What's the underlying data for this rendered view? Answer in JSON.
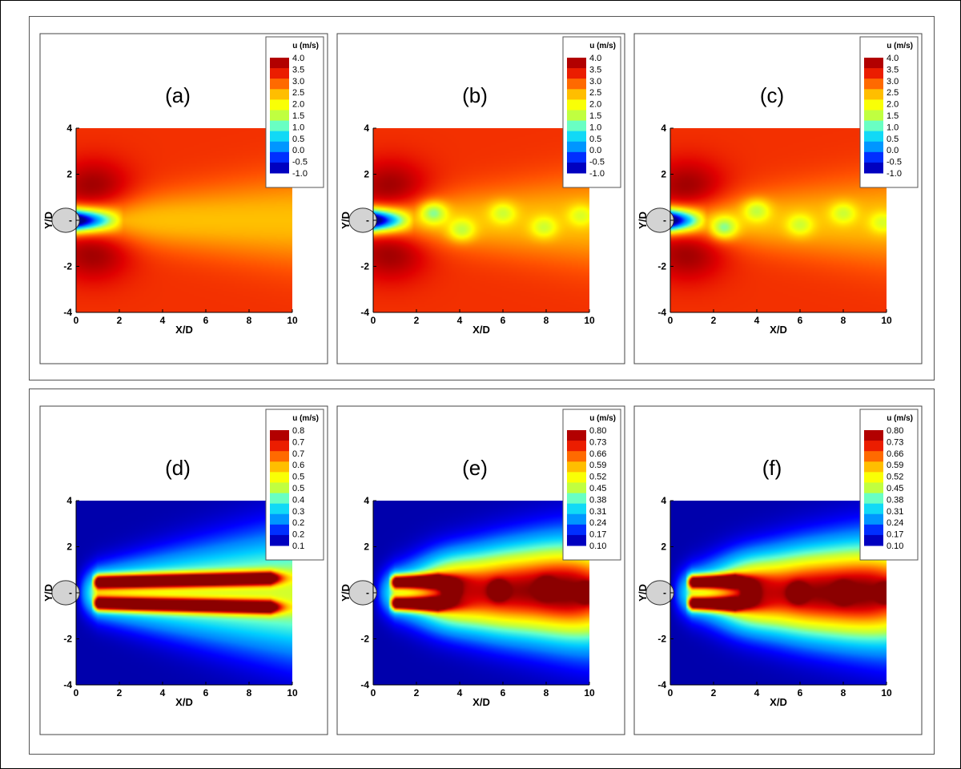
{
  "figure": {
    "colormap": [
      "#00008b",
      "#0000ff",
      "#0080ff",
      "#00d0ff",
      "#60ffd0",
      "#c0ff40",
      "#ffff00",
      "#ffb000",
      "#ff5000",
      "#e00000",
      "#8b0000"
    ],
    "obstacle_color": "#d3d3d3"
  },
  "chart_data": [
    {
      "type": "heatmap",
      "panel": "(a)",
      "flow": "steady",
      "xlabel": "X/D",
      "ylabel": "Y/D",
      "xlim": [
        0,
        10
      ],
      "ylim": [
        -4,
        4
      ],
      "xticks": [
        "0",
        "2",
        "4",
        "6",
        "8",
        "10"
      ],
      "yticks": [
        "4",
        "2",
        "-",
        "-2",
        "-4"
      ],
      "legend_title": "u (m/s)",
      "legend_labels": [
        "4.0",
        "3.5",
        "3.0",
        "2.5",
        "2.0",
        "1.5",
        "1.0",
        "0.5",
        "0.0",
        "-0.5",
        "-1.0"
      ],
      "range": [
        -1.0,
        4.0
      ],
      "field": "velocity",
      "freestream": 3.2,
      "core": -0.8,
      "recirc_len": 2.2,
      "wake_min": 2.4,
      "vortices": []
    },
    {
      "type": "heatmap",
      "panel": "(b)",
      "flow": "shedding",
      "xlabel": "X/D",
      "ylabel": "Y/D",
      "xlim": [
        0,
        10
      ],
      "ylim": [
        -4,
        4
      ],
      "xticks": [
        "0",
        "2",
        "4",
        "6",
        "8",
        "10"
      ],
      "yticks": [
        "4",
        "2",
        "-",
        "-2",
        "-4"
      ],
      "legend_title": "u (m/s)",
      "legend_labels": [
        "4.0",
        "3.5",
        "3.0",
        "2.5",
        "2.0",
        "1.5",
        "1.0",
        "0.5",
        "0.0",
        "-0.5",
        "-1.0"
      ],
      "range": [
        -1.0,
        4.0
      ],
      "field": "velocity",
      "freestream": 3.2,
      "core": -0.8,
      "recirc_len": 1.9,
      "wake_min": 2.4,
      "vortices": [
        [
          2.8,
          0.3,
          1.2
        ],
        [
          4.1,
          -0.4,
          1.5
        ],
        [
          6.0,
          0.3,
          1.6
        ],
        [
          7.9,
          -0.3,
          1.6
        ],
        [
          9.6,
          0.2,
          1.7
        ]
      ]
    },
    {
      "type": "heatmap",
      "panel": "(c)",
      "flow": "shedding",
      "xlabel": "X/D",
      "ylabel": "Y/D",
      "xlim": [
        0,
        10
      ],
      "ylim": [
        -4,
        4
      ],
      "xticks": [
        "0",
        "2",
        "4",
        "6",
        "8",
        "10"
      ],
      "yticks": [
        "4",
        "2",
        "-",
        "-2",
        "-4"
      ],
      "legend_title": "u (m/s)",
      "legend_labels": [
        "4.0",
        "3.5",
        "3.0",
        "2.5",
        "2.0",
        "1.5",
        "1.0",
        "0.5",
        "0.0",
        "-0.5",
        "-1.0"
      ],
      "range": [
        -1.0,
        4.0
      ],
      "field": "velocity",
      "freestream": 3.2,
      "core": -0.8,
      "recirc_len": 1.7,
      "wake_min": 2.4,
      "vortices": [
        [
          2.5,
          -0.3,
          1.2
        ],
        [
          4.0,
          0.4,
          1.5
        ],
        [
          6.0,
          -0.2,
          1.6
        ],
        [
          8.0,
          0.3,
          1.6
        ],
        [
          9.8,
          -0.1,
          1.7
        ]
      ]
    },
    {
      "type": "heatmap",
      "panel": "(d)",
      "flow": "steady",
      "xlabel": "X/D",
      "ylabel": "Y/D",
      "xlim": [
        0,
        10
      ],
      "ylim": [
        -4,
        4
      ],
      "xticks": [
        "0",
        "2",
        "4",
        "6",
        "8",
        "10"
      ],
      "yticks": [
        "4",
        "2",
        "-",
        "-2",
        "-4"
      ],
      "legend_title": "u (m/s)",
      "legend_labels": [
        "0.8",
        "0.7",
        "0.7",
        "0.6",
        "0.5",
        "0.5",
        "0.4",
        "0.3",
        "0.2",
        "0.2",
        "0.1"
      ],
      "range": [
        0.1,
        0.8
      ],
      "field": "fluctuation",
      "background": 0.12,
      "shear_peak": 0.78,
      "shear_len": 9,
      "vortices": []
    },
    {
      "type": "heatmap",
      "panel": "(e)",
      "flow": "shedding",
      "xlabel": "X/D",
      "ylabel": "Y/D",
      "xlim": [
        0,
        10
      ],
      "ylim": [
        -4,
        4
      ],
      "xticks": [
        "0",
        "2",
        "4",
        "6",
        "8",
        "10"
      ],
      "yticks": [
        "4",
        "2",
        "-",
        "-2",
        "-4"
      ],
      "legend_title": "u (m/s)",
      "legend_labels": [
        "0.80",
        "0.73",
        "0.66",
        "0.59",
        "0.52",
        "0.45",
        "0.38",
        "0.31",
        "0.24",
        "0.17",
        "0.10"
      ],
      "range": [
        0.1,
        0.8
      ],
      "field": "fluctuation",
      "background": 0.12,
      "shear_peak": 0.78,
      "shear_len": 3,
      "vortices": [
        [
          3.6,
          0.1,
          1.4
        ],
        [
          5.8,
          0.1,
          1.6
        ],
        [
          8.0,
          0.2,
          1.7
        ],
        [
          9.9,
          0.0,
          1.7
        ]
      ]
    },
    {
      "type": "heatmap",
      "panel": "(f)",
      "flow": "shedding",
      "xlabel": "X/D",
      "ylabel": "Y/D",
      "xlim": [
        0,
        10
      ],
      "ylim": [
        -4,
        4
      ],
      "xticks": [
        "0",
        "2",
        "4",
        "6",
        "8",
        "10"
      ],
      "yticks": [
        "4",
        "2",
        "-",
        "-2",
        "-4"
      ],
      "legend_title": "u (m/s)",
      "legend_labels": [
        "0.80",
        "0.73",
        "0.66",
        "0.59",
        "0.52",
        "0.45",
        "0.38",
        "0.31",
        "0.24",
        "0.17",
        "0.10"
      ],
      "range": [
        0.1,
        0.8
      ],
      "field": "fluctuation",
      "background": 0.12,
      "shear_peak": 0.78,
      "shear_len": 3,
      "vortices": [
        [
          3.7,
          0.0,
          1.4
        ],
        [
          5.9,
          0.0,
          1.6
        ],
        [
          8.0,
          0.0,
          1.7
        ],
        [
          10.0,
          0.0,
          1.7
        ]
      ]
    }
  ]
}
